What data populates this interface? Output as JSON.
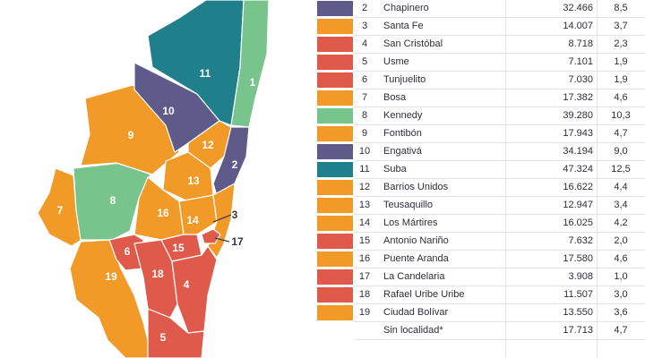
{
  "colors": {
    "purple": "#5e5a89",
    "orange": "#f19a27",
    "red": "#e05a4c",
    "green": "#78c48d",
    "teal": "#1f7f8b"
  },
  "map": {
    "labels": {
      "l1": "1",
      "l2": "2",
      "l3": "3",
      "l4": "4",
      "l5": "5",
      "l6": "6",
      "l7": "7",
      "l8": "8",
      "l9": "9",
      "l10": "10",
      "l11": "11",
      "l12": "12",
      "l13": "13",
      "l14": "14",
      "l15": "15",
      "l16": "16",
      "l17": "17",
      "l18": "18",
      "l19": "19"
    }
  },
  "table": {
    "rows": [
      {
        "num": "2",
        "name": "Chapinero",
        "value": "32.466",
        "pct": "8,5",
        "color": "#5e5a89"
      },
      {
        "num": "3",
        "name": "Santa Fe",
        "value": "14.007",
        "pct": "3,7",
        "color": "#f19a27"
      },
      {
        "num": "4",
        "name": "San Cristóbal",
        "value": "8.718",
        "pct": "2,3",
        "color": "#e05a4c"
      },
      {
        "num": "5",
        "name": "Usme",
        "value": "7.101",
        "pct": "1,9",
        "color": "#e05a4c"
      },
      {
        "num": "6",
        "name": "Tunjuelito",
        "value": "7.030",
        "pct": "1,9",
        "color": "#e05a4c"
      },
      {
        "num": "7",
        "name": "Bosa",
        "value": "17.382",
        "pct": "4,6",
        "color": "#f19a27"
      },
      {
        "num": "8",
        "name": "Kennedy",
        "value": "39.280",
        "pct": "10,3",
        "color": "#78c48d"
      },
      {
        "num": "9",
        "name": "Fontibón",
        "value": "17.943",
        "pct": "4,7",
        "color": "#f19a27"
      },
      {
        "num": "10",
        "name": "Engativá",
        "value": "34.194",
        "pct": "9,0",
        "color": "#5e5a89"
      },
      {
        "num": "11",
        "name": "Suba",
        "value": "47.324",
        "pct": "12,5",
        "color": "#1f7f8b"
      },
      {
        "num": "12",
        "name": "Barrios Unidos",
        "value": "16.622",
        "pct": "4,4",
        "color": "#f19a27"
      },
      {
        "num": "13",
        "name": "Teusaquillo",
        "value": "12.947",
        "pct": "3,4",
        "color": "#f19a27"
      },
      {
        "num": "14",
        "name": "Los Mártires",
        "value": "16.025",
        "pct": "4,2",
        "color": "#f19a27"
      },
      {
        "num": "15",
        "name": "Antonio Nariño",
        "value": "7.632",
        "pct": "2,0",
        "color": "#e05a4c"
      },
      {
        "num": "16",
        "name": "Puente Aranda",
        "value": "17.580",
        "pct": "4,6",
        "color": "#f19a27"
      },
      {
        "num": "17",
        "name": "La Candelaria",
        "value": "3.908",
        "pct": "1,0",
        "color": "#e05a4c"
      },
      {
        "num": "18",
        "name": "Rafael Uribe Uribe",
        "value": "11.507",
        "pct": "3,0",
        "color": "#e05a4c"
      },
      {
        "num": "19",
        "name": "Ciudad Bolívar",
        "value": "13.550",
        "pct": "3,6",
        "color": "#f19a27"
      },
      {
        "num": "",
        "name": "Sin localidad*",
        "value": "17.713",
        "pct": "4,7",
        "color": ""
      }
    ]
  }
}
